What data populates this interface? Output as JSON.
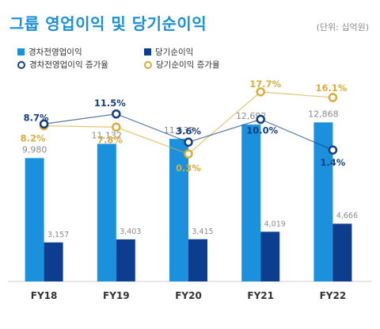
{
  "title": "그룹 영업이익 및 당기순이익",
  "unit": "(단위: 십억원)",
  "colors": {
    "title": "#1a8fd8",
    "op_bar": "#1b90dc",
    "net_bar": "#0c3d8e",
    "op_line": "#163f80",
    "net_line": "#d9ad3c",
    "bar_label": "#8b8b8b"
  },
  "legend": {
    "op_profit": "경차전영업이익",
    "net_income": "당기순이익",
    "op_growth": "경차전영업이익 증가율",
    "net_growth": "당기순이익 증가율"
  },
  "chart_data": {
    "type": "bar",
    "categories": [
      "FY18",
      "FY19",
      "FY20",
      "FY21",
      "FY22"
    ],
    "series": [
      {
        "name": "경차전영업이익",
        "type": "bar",
        "values": [
          9980,
          11132,
          11533,
          12692,
          12868
        ],
        "labels": [
          "9,980",
          "11,132",
          "11,533",
          "12,692",
          "12,868"
        ]
      },
      {
        "name": "당기순이익",
        "type": "bar",
        "values": [
          3157,
          3403,
          3415,
          4019,
          4666
        ],
        "labels": [
          "3,157",
          "3,403",
          "3,415",
          "4,019",
          "4,666"
        ]
      },
      {
        "name": "경차전영업이익 증가율",
        "type": "line",
        "values": [
          8.7,
          11.5,
          3.6,
          10.0,
          1.4
        ],
        "labels": [
          "8.7%",
          "11.5%",
          "3.6%",
          "10.0%",
          "1.4%"
        ]
      },
      {
        "name": "당기순이익 증가율",
        "type": "line",
        "values": [
          8.2,
          7.8,
          0.3,
          17.7,
          16.1
        ],
        "labels": [
          "8.2%",
          "7.8%",
          "0.3%",
          "17.7%",
          "16.1%"
        ]
      }
    ],
    "legend_position": "top-left",
    "grid": false
  }
}
